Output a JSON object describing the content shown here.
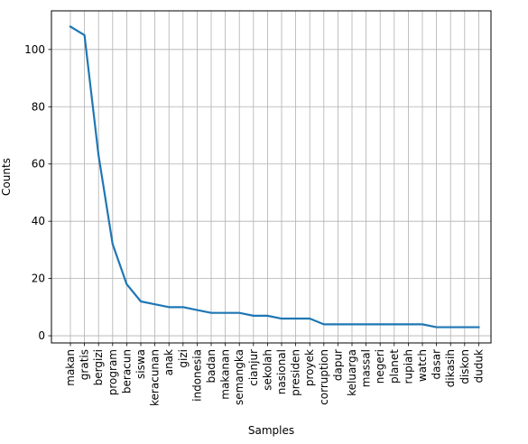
{
  "chart_data": {
    "type": "line",
    "title": "",
    "xlabel": "Samples",
    "ylabel": "Counts",
    "categories": [
      "makan",
      "gratis",
      "bergizi",
      "program",
      "beracun",
      "siswa",
      "keracunan",
      "anak",
      "gizi",
      "indonesia",
      "badan",
      "makanan",
      "semangka",
      "cianjur",
      "sekolah",
      "nasional",
      "presiden",
      "proyek",
      "corruption",
      "dapur",
      "keluarga",
      "massal",
      "negeri",
      "planet",
      "rupiah",
      "watch",
      "dasar",
      "dikasih",
      "diskon",
      "duduk"
    ],
    "series": [
      {
        "values": [
          108,
          105,
          63,
          32,
          18,
          12,
          11,
          10,
          10,
          9,
          8,
          8,
          8,
          7,
          7,
          6,
          6,
          6,
          4,
          4,
          4,
          4,
          4,
          4,
          4,
          4,
          3,
          3,
          3,
          3
        ]
      }
    ],
    "ylim": [
      -2.5,
      113.5
    ],
    "yticks": [
      0,
      20,
      40,
      60,
      80,
      100
    ],
    "grid": true,
    "line_color": "#1f77b4"
  }
}
